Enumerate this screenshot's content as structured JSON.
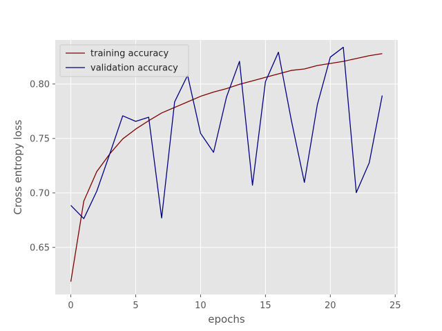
{
  "chart_data": {
    "type": "line",
    "xlabel": "epochs",
    "ylabel": "Cross entropy loss",
    "xlim": [
      -1.2,
      25.2
    ],
    "ylim": [
      0.6068,
      0.8404
    ],
    "xticks": [
      0,
      5,
      10,
      15,
      20,
      25
    ],
    "yticks": [
      0.65,
      0.7,
      0.75,
      0.8
    ],
    "ytick_labels": [
      "0.65",
      "0.70",
      "0.75",
      "0.80"
    ],
    "grid": true,
    "legend_position": "top-left",
    "background_color": "#e5e5e5",
    "x": [
      0,
      1,
      2,
      3,
      4,
      5,
      6,
      7,
      8,
      9,
      10,
      11,
      12,
      13,
      14,
      15,
      16,
      17,
      18,
      19,
      20,
      21,
      22,
      23,
      24
    ],
    "series": [
      {
        "name": "training accuracy",
        "color": "#800000",
        "values": [
          0.6185,
          0.6925,
          0.7196,
          0.7358,
          0.7496,
          0.7586,
          0.7663,
          0.7734,
          0.7785,
          0.7836,
          0.7887,
          0.7926,
          0.7958,
          0.7997,
          0.8029,
          0.8061,
          0.8093,
          0.8125,
          0.8138,
          0.817,
          0.8189,
          0.8208,
          0.8234,
          0.826,
          0.8279
        ]
      },
      {
        "name": "validation accuracy",
        "color": "#000080",
        "values": [
          0.6886,
          0.6764,
          0.7016,
          0.7358,
          0.7708,
          0.7657,
          0.7695,
          0.677,
          0.7836,
          0.808,
          0.7547,
          0.7373,
          0.7881,
          0.8208,
          0.7071,
          0.8022,
          0.8292,
          0.7663,
          0.7097,
          0.7811,
          0.8247,
          0.8337,
          0.7003,
          0.7277,
          0.7894
        ]
      }
    ]
  }
}
